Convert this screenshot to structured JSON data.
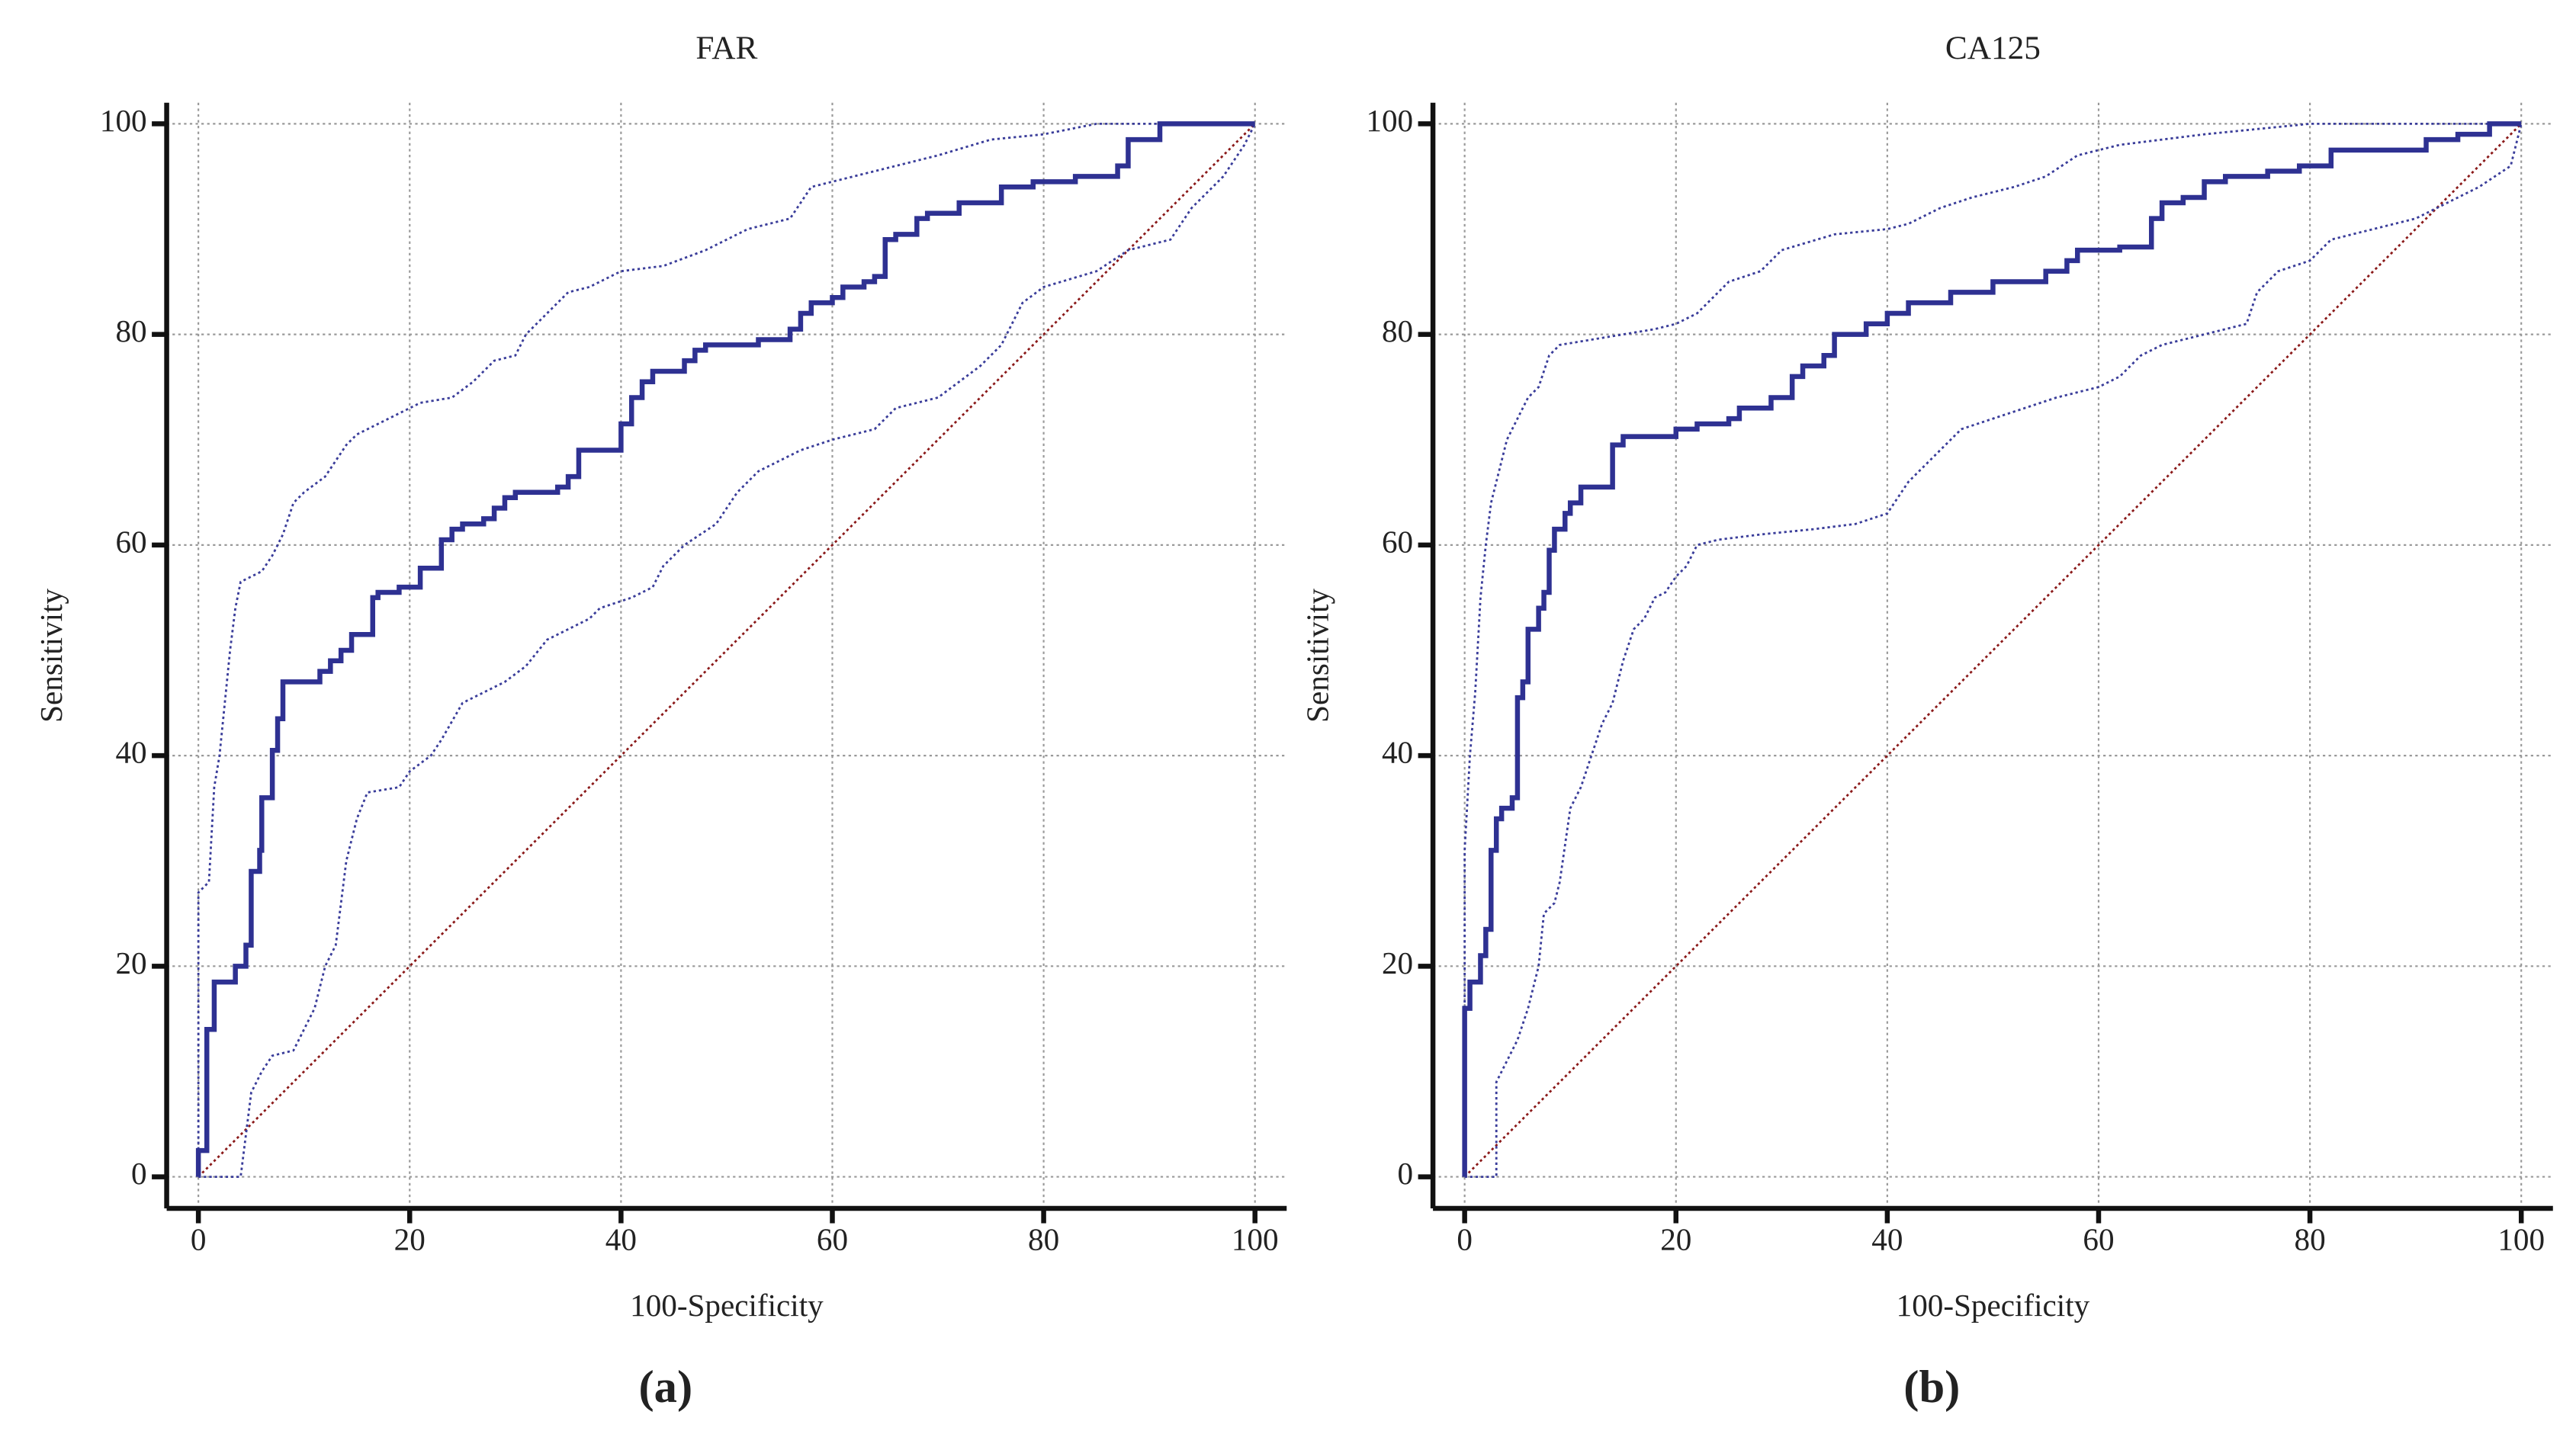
{
  "chart_data": [
    {
      "type": "line",
      "title": "FAR",
      "xlabel": "100-Specificity",
      "ylabel": "Sensitivity",
      "panel_label": "(a)",
      "xlim": [
        -3,
        103
      ],
      "ylim": [
        -3,
        102
      ],
      "xticks": [
        0,
        20,
        40,
        60,
        80,
        100
      ],
      "yticks": [
        0,
        20,
        40,
        60,
        80,
        100
      ],
      "grid": true,
      "series": [
        {
          "color": "#8b1a1a",
          "style": "dotted",
          "x": [
            0,
            100
          ],
          "values": [
            0,
            100
          ]
        },
        {
          "color": "#3a3d9a",
          "style": "dotted",
          "x": [
            0,
            0,
            1,
            1.5,
            2,
            3,
            3.5,
            4,
            6,
            7,
            8,
            9,
            10,
            12,
            13,
            14,
            15,
            17,
            19,
            21,
            24,
            26,
            28,
            30,
            31,
            33,
            35,
            37,
            40,
            44,
            48,
            52,
            56,
            58,
            62,
            66,
            70,
            75,
            80,
            85,
            100
          ],
          "values": [
            0,
            27,
            28,
            37,
            40,
            50,
            54,
            56.5,
            57.5,
            59,
            61,
            64,
            65,
            66.5,
            68,
            69.5,
            70.5,
            71.5,
            72.5,
            73.5,
            74,
            75.5,
            77.5,
            78,
            80,
            82,
            84,
            84.5,
            86,
            86.5,
            88,
            90,
            91,
            94,
            95,
            96,
            97,
            98.5,
            99,
            100,
            100
          ]
        },
        {
          "color": "#3a3d9a",
          "style": "dotted",
          "x": [
            0,
            4,
            5,
            6,
            7,
            9,
            10,
            11,
            12,
            13,
            14,
            15,
            16,
            19,
            20,
            22,
            23,
            25,
            27,
            29,
            31,
            33,
            35,
            37,
            38,
            41,
            43,
            44,
            46,
            49,
            51,
            53,
            55,
            57,
            60,
            64,
            66,
            70,
            74,
            76,
            78,
            80,
            85,
            88,
            92,
            94,
            97,
            99,
            100
          ],
          "values": [
            0,
            0,
            8,
            10,
            11.5,
            12,
            14,
            16,
            20,
            22,
            30,
            34,
            36.5,
            37,
            38.5,
            40,
            41.5,
            45,
            46,
            47,
            48.5,
            51,
            52,
            53,
            54,
            55,
            56,
            58,
            60,
            62,
            65,
            67,
            68,
            69,
            70,
            71,
            73,
            74,
            77,
            79,
            83,
            84.5,
            86,
            88,
            89,
            92,
            95,
            98,
            100
          ]
        },
        {
          "color": "#2e3192",
          "style": "solid",
          "x": [
            0,
            0,
            0.8,
            0.8,
            1.5,
            1.5,
            3.5,
            3.5,
            4.5,
            4.5,
            5,
            5,
            5.8,
            5.8,
            6,
            6,
            7,
            7,
            7.5,
            7.5,
            8,
            8,
            11.5,
            11.5,
            12.5,
            12.5,
            13.5,
            13.5,
            14.5,
            14.5,
            16.5,
            16.5,
            17,
            17,
            19,
            19,
            21,
            21,
            23,
            23,
            24,
            24,
            25,
            25,
            27,
            27,
            28,
            28,
            29,
            29,
            30,
            30,
            34,
            34,
            35,
            35,
            36,
            36,
            40,
            40,
            41,
            41,
            42,
            42,
            43,
            43,
            46,
            46,
            47,
            47,
            48,
            48,
            53,
            53,
            56,
            56,
            57,
            57,
            58,
            58,
            60,
            60,
            61,
            61,
            63,
            63,
            64,
            64,
            65,
            65,
            66,
            66,
            68,
            68,
            69,
            69,
            72,
            72,
            76,
            76,
            79,
            79,
            83,
            83,
            87,
            87,
            88,
            88,
            91,
            91,
            100
          ],
          "values": [
            0,
            2.5,
            2.5,
            14,
            14,
            18.5,
            18.5,
            20,
            20,
            22,
            22,
            29,
            29,
            31,
            31,
            36,
            36,
            40.5,
            40.5,
            43.5,
            43.5,
            47,
            47,
            48,
            48,
            49,
            49,
            50,
            50,
            51.5,
            51.5,
            55,
            55,
            55.5,
            55.5,
            56,
            56,
            57.8,
            57.8,
            60.5,
            60.5,
            61.5,
            61.5,
            62,
            62,
            62.5,
            62.5,
            63.5,
            63.5,
            64.5,
            64.5,
            65,
            65,
            65.5,
            65.5,
            66.5,
            66.5,
            69,
            69,
            71.5,
            71.5,
            74,
            74,
            75.5,
            75.5,
            76.5,
            76.5,
            77.5,
            77.5,
            78.5,
            78.5,
            79,
            79,
            79.5,
            79.5,
            80.5,
            80.5,
            82,
            82,
            83,
            83,
            83.5,
            83.5,
            84.5,
            84.5,
            85,
            85,
            85.5,
            85.5,
            89,
            89,
            89.5,
            89.5,
            91,
            91,
            91.5,
            91.5,
            92.5,
            92.5,
            94,
            94,
            94.5,
            94.5,
            95,
            95,
            96,
            96,
            98.5,
            98.5,
            100,
            100
          ]
        }
      ]
    },
    {
      "type": "line",
      "title": "CA125",
      "xlabel": "100-Specificity",
      "ylabel": "Sensitivity",
      "panel_label": "(b)",
      "xlim": [
        -3,
        103
      ],
      "ylim": [
        -3,
        102
      ],
      "xticks": [
        0,
        20,
        40,
        60,
        80,
        100
      ],
      "yticks": [
        0,
        20,
        40,
        60,
        80,
        100
      ],
      "grid": true,
      "series": [
        {
          "color": "#8b1a1a",
          "style": "dotted",
          "x": [
            0,
            100
          ],
          "values": [
            0,
            100
          ]
        },
        {
          "color": "#3a3d9a",
          "style": "dotted",
          "x": [
            0,
            0,
            0.5,
            1,
            1.5,
            2,
            2.5,
            3,
            4,
            5,
            6,
            7,
            8,
            9,
            12,
            15,
            18,
            20,
            22,
            23,
            25,
            28,
            30,
            35,
            40,
            42,
            45,
            48,
            52,
            55,
            58,
            62,
            66,
            70,
            75,
            80,
            100
          ],
          "values": [
            0,
            31,
            40,
            46,
            55,
            60,
            64,
            66,
            70,
            72,
            74,
            75,
            78,
            79,
            79.5,
            80,
            80.5,
            81,
            82,
            83,
            85,
            86,
            88,
            89.5,
            90,
            90.5,
            92,
            93,
            94,
            95,
            97,
            98,
            98.5,
            99,
            99.5,
            100,
            100
          ]
        },
        {
          "color": "#3a3d9a",
          "style": "dotted",
          "x": [
            0,
            3,
            3,
            4,
            5,
            6,
            7,
            7.5,
            8.5,
            9,
            10,
            11,
            12,
            13,
            14,
            15,
            16,
            17,
            18,
            19,
            20,
            21,
            22,
            24,
            28,
            33,
            37,
            40,
            42,
            44,
            47,
            50,
            53,
            56,
            60,
            62,
            64,
            66,
            70,
            74,
            75,
            77,
            80,
            82,
            86,
            90,
            93,
            96,
            99,
            100
          ],
          "values": [
            0,
            0,
            9,
            11,
            13,
            16,
            20,
            25,
            26,
            28,
            35,
            37,
            40,
            43,
            45,
            49,
            52,
            53,
            55,
            55.5,
            57,
            58,
            60,
            60.5,
            61,
            61.5,
            62,
            63,
            66,
            68,
            71,
            72,
            73,
            74,
            75,
            76,
            78,
            79,
            80,
            81,
            84,
            86,
            87,
            89,
            90,
            91,
            92.5,
            94,
            96,
            100
          ]
        },
        {
          "color": "#2e3192",
          "style": "solid",
          "x": [
            0,
            0,
            0.5,
            0.5,
            1.5,
            1.5,
            2,
            2,
            2.5,
            2.5,
            3,
            3,
            3.5,
            3.5,
            4.5,
            4.5,
            5,
            5,
            5.5,
            5.5,
            6,
            6,
            7,
            7,
            7.5,
            7.5,
            8,
            8,
            8.5,
            8.5,
            9.5,
            9.5,
            10,
            10,
            11,
            11,
            14,
            14,
            15,
            15,
            20,
            20,
            22,
            22,
            25,
            25,
            26,
            26,
            29,
            29,
            31,
            31,
            32,
            32,
            34,
            34,
            35,
            35,
            38,
            38,
            40,
            40,
            42,
            42,
            46,
            46,
            50,
            50,
            55,
            55,
            57,
            57,
            58,
            58,
            62,
            62,
            65,
            65,
            66,
            66,
            68,
            68,
            70,
            70,
            72,
            72,
            76,
            76,
            79,
            79,
            82,
            82,
            91,
            91,
            94,
            94,
            97,
            97,
            100
          ],
          "values": [
            0,
            16,
            16,
            18.5,
            18.5,
            21,
            21,
            23.5,
            23.5,
            31,
            31,
            34,
            34,
            35,
            35,
            36,
            36,
            45.5,
            45.5,
            47,
            47,
            52,
            52,
            54,
            54,
            55.5,
            55.5,
            59.5,
            59.5,
            61.5,
            61.5,
            63,
            63,
            64,
            64,
            65.5,
            65.5,
            69.5,
            69.5,
            70.3,
            70.3,
            71,
            71,
            71.5,
            71.5,
            72,
            72,
            73,
            73,
            74,
            74,
            76,
            76,
            77,
            77,
            78,
            78,
            80,
            80,
            81,
            81,
            82,
            82,
            83,
            83,
            84,
            84,
            85,
            85,
            86,
            86,
            87,
            87,
            88,
            88,
            88.3,
            88.3,
            91,
            91,
            92.5,
            92.5,
            93,
            93,
            94.5,
            94.5,
            95,
            95,
            95.5,
            95.5,
            96,
            96,
            97.5,
            97.5,
            98.5,
            98.5,
            99,
            99,
            100,
            100
          ]
        }
      ]
    }
  ]
}
